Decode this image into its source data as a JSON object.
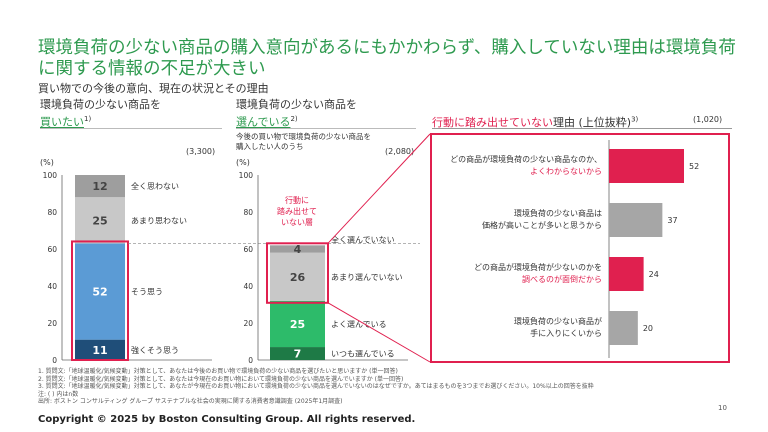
{
  "header": {
    "title": "環境負荷の少ない商品の購入意向があるにもかかわらず、購入していない理由は環境負荷に関する情報の不足が大きい",
    "subtitle": "買い物での今後の意向、現在の状況とその理由"
  },
  "left_panel": {
    "title_line1": "環境負荷の少ない商品を",
    "title_line2": "買いたい",
    "sup": "1)",
    "n": "(3,300)",
    "unit": "(%)"
  },
  "middle_panel": {
    "title_line1": "環境負荷の少ない商品を",
    "title_line2": "選んでいる",
    "sup": "2)",
    "sub_line1": "今後の買い物で環境負荷の少ない商品を",
    "sub_line2": "購入したい人のうち",
    "n": "(2,080)",
    "unit": "(%)",
    "callout": [
      "行動に",
      "踏み出せて",
      "いない層"
    ]
  },
  "right_panel": {
    "title_red": "行動に踏み出せていない",
    "title_rest": "理由 (上位抜粋)",
    "sup": "3)",
    "n": "(1,020)"
  },
  "axis_ticks": [
    "0",
    "20",
    "40",
    "60",
    "80",
    "100"
  ],
  "chart_data": [
    {
      "type": "bar",
      "stacked": true,
      "ylim": [
        0,
        100
      ],
      "segments": [
        {
          "name": "強くそう思う",
          "value": 11,
          "color": "#1f4e79"
        },
        {
          "name": "そう思う",
          "value": 52,
          "color": "#5b9bd5"
        },
        {
          "name": "あまり思わない",
          "value": 25,
          "color": "#c8c8c8"
        },
        {
          "name": "全く思わない",
          "value": 12,
          "color": "#9e9e9e"
        }
      ]
    },
    {
      "type": "bar",
      "stacked": true,
      "ylim": [
        0,
        100
      ],
      "segments": [
        {
          "name": "いつも選んでいる",
          "value": 7,
          "color": "#1e7a46"
        },
        {
          "name": "よく選んでいる",
          "value": 25,
          "color": "#2dbb6a"
        },
        {
          "name": "あまり選んでいない",
          "value": 26,
          "color": "#c8c8c8"
        },
        {
          "name": "全く選んでいない",
          "value": 4,
          "color": "#9e9e9e"
        }
      ]
    },
    {
      "type": "bar",
      "orientation": "horizontal",
      "xlim": [
        0,
        60
      ],
      "categories": [
        {
          "line1": "どの商品が環境負荷の少ない商品なのか、",
          "line2": "よくわからないから",
          "highlight": true
        },
        {
          "line1": "環境負荷の少ない商品は",
          "line2": "価格が高いことが多いと思うから",
          "highlight": false
        },
        {
          "line1": "どの商品が環境負荷が少ないのかを",
          "line2": "調べるのが面倒だから",
          "highlight": true
        },
        {
          "line1": "環境負荷の少ない商品が",
          "line2": "手に入りにくいから",
          "highlight": false
        }
      ],
      "values": [
        52,
        37,
        24,
        20
      ],
      "colors": {
        "highlight": "#e0204f",
        "normal": "#a6a6a6"
      }
    }
  ],
  "footnotes": [
    "1. 質問文:「地球温暖化/気候変動」対策として、あなたは今後のお買い物で環境負荷の少ない商品を選びたいと思いますか (単一回答)",
    "2. 質問文:「地球温暖化/気候変動」対策として、あなたは今現在のお買い物において環境負荷の少ない商品を選んでいますか (単一回答)",
    "3. 質問文:「地球温暖化/気候変動」対策として、あなたが今現在のお買い物において環境負荷の少ない商品を選んでいないのはなぜですか。あてはまるものを3つまでお選びください。10%以上の回答を抜粋",
    "注: ( ) 内はn数",
    "出所: ボストン コンサルティング グループ サステナブルな社会の実現に関する消費者意識調査 (2025年1月調査)"
  ],
  "copyright": "Copyright © 2025 by Boston Consulting Group. All rights reserved.",
  "page_number": "10"
}
